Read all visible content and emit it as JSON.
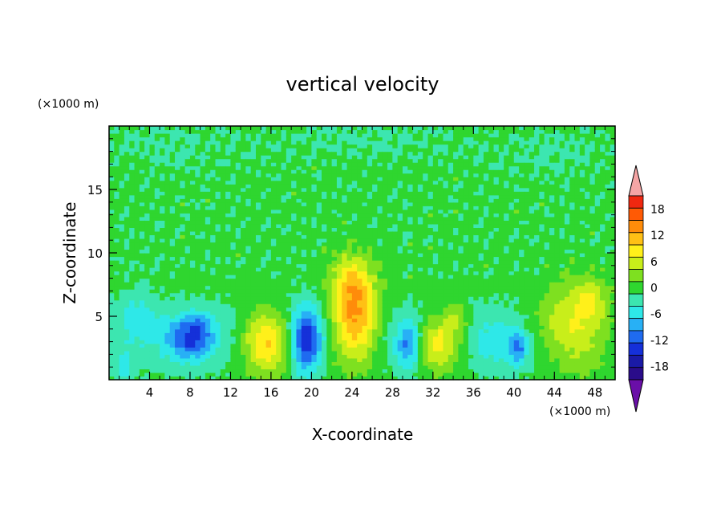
{
  "chart_data": {
    "type": "heatmap",
    "title": "vertical velocity",
    "xlabel": "X-coordinate",
    "ylabel": "Z-coordinate",
    "x_unit": "(×1000 m)",
    "y_unit": "(×1000 m)",
    "xlim": [
      0,
      50
    ],
    "ylim": [
      0,
      20
    ],
    "x_ticks": [
      4,
      8,
      12,
      16,
      20,
      24,
      28,
      32,
      36,
      40,
      44,
      48
    ],
    "y_ticks": [
      5,
      10,
      15
    ],
    "x_minor_step": 1,
    "y_minor_step": 1,
    "colorbar": {
      "labels": [
        18,
        12,
        6,
        0,
        -6,
        -12,
        -18
      ],
      "levels": [
        -21,
        -18,
        -15,
        -12,
        -9,
        -6,
        -3,
        0,
        3,
        6,
        9,
        12,
        15,
        18,
        21
      ],
      "colors": [
        "#6a0fa8",
        "#2a0c8a",
        "#1a1aa6",
        "#1530d9",
        "#1f6bf0",
        "#28b0f5",
        "#2ee8e8",
        "#3ce6b0",
        "#2fd62f",
        "#7ee020",
        "#c8ee1a",
        "#fff01a",
        "#ffc015",
        "#ff8c0a",
        "#ff5a05",
        "#f02810",
        "#f5a5a5"
      ],
      "extend": "both"
    },
    "features": [
      {
        "x": 1.5,
        "z": 1.0,
        "sx": 0.7,
        "sz": 0.9,
        "w": -4
      },
      {
        "x": 3.0,
        "z": 5.0,
        "sx": 1.3,
        "sz": 1.5,
        "w": -4
      },
      {
        "x": 8.0,
        "z": 3.3,
        "sx": 1.7,
        "sz": 1.2,
        "w": -12
      },
      {
        "x": 9.0,
        "z": 4.5,
        "sx": 0.8,
        "sz": 0.8,
        "w": -3
      },
      {
        "x": 15.5,
        "z": 3.0,
        "sx": 1.6,
        "sz": 1.8,
        "w": 13
      },
      {
        "x": 19.5,
        "z": 3.2,
        "sx": 1.0,
        "sz": 1.8,
        "w": -14
      },
      {
        "x": 24.3,
        "z": 5.0,
        "sx": 1.6,
        "sz": 2.6,
        "w": 16
      },
      {
        "x": 23.8,
        "z": 8.0,
        "sx": 1.3,
        "sz": 1.3,
        "w": 5
      },
      {
        "x": 29.6,
        "z": 2.8,
        "sx": 0.9,
        "sz": 1.4,
        "w": -10
      },
      {
        "x": 32.5,
        "z": 2.8,
        "sx": 1.6,
        "sz": 1.5,
        "w": 11
      },
      {
        "x": 34.3,
        "z": 4.8,
        "sx": 0.9,
        "sz": 1.0,
        "w": 5
      },
      {
        "x": 38.5,
        "z": 3.0,
        "sx": 2.0,
        "sz": 1.5,
        "w": -4
      },
      {
        "x": 40.5,
        "z": 2.5,
        "sx": 0.6,
        "sz": 0.9,
        "w": -8
      },
      {
        "x": 45.8,
        "z": 4.2,
        "sx": 2.6,
        "sz": 2.1,
        "w": 10
      },
      {
        "x": 47.5,
        "z": 6.5,
        "sx": 1.2,
        "sz": 1.2,
        "w": 5
      },
      {
        "x": 47.5,
        "z": 1.5,
        "sx": 1.5,
        "sz": 1.0,
        "w": 2
      },
      {
        "x": 25.0,
        "z": 19.0,
        "sx": 6.0,
        "sz": 1.0,
        "w": -1.5
      },
      {
        "x": 6.0,
        "z": 18.5,
        "sx": 4.0,
        "sz": 1.2,
        "w": -1.5
      },
      {
        "x": 44.0,
        "z": 18.0,
        "sx": 4.0,
        "sz": 1.2,
        "w": -1.5
      }
    ]
  }
}
